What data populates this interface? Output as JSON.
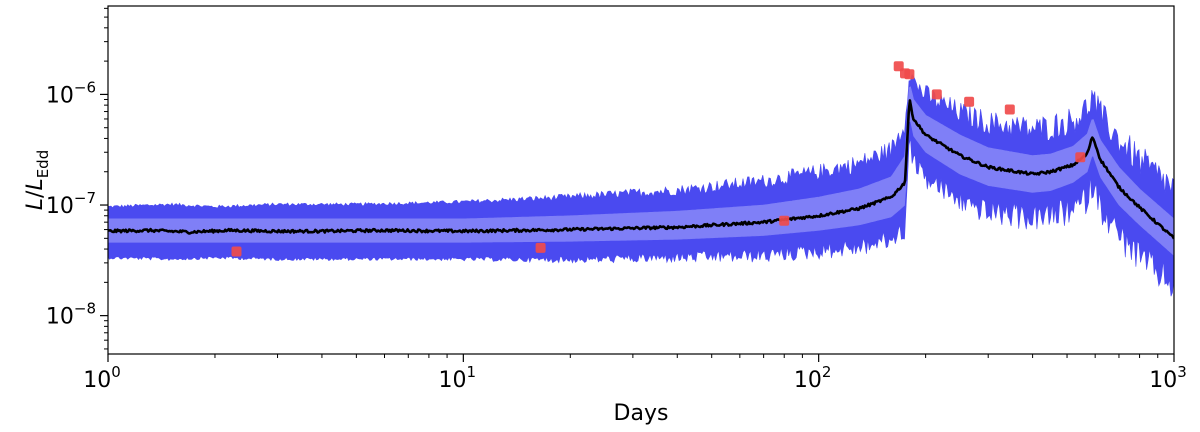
{
  "chart_data": {
    "type": "line",
    "title": "",
    "xlabel": "Days",
    "ylabel": {
      "main": "L",
      "slash": "/",
      "sub_main": "L",
      "sub": "Edd"
    },
    "xscale": "log",
    "yscale": "log",
    "xlim": [
      1,
      1000
    ],
    "ylim": [
      4.5e-09,
      6.3e-06
    ],
    "grid": false,
    "legend": "none",
    "x_ticks": [
      {
        "value": 1,
        "base": "10",
        "exp": "0"
      },
      {
        "value": 10,
        "base": "10",
        "exp": "1"
      },
      {
        "value": 100,
        "base": "10",
        "exp": "2"
      },
      {
        "value": 1000,
        "base": "10",
        "exp": "3"
      }
    ],
    "y_ticks": [
      {
        "value": 1e-08,
        "base": "10",
        "exp": "−8"
      },
      {
        "value": 1e-07,
        "base": "10",
        "exp": "−7"
      },
      {
        "value": 1e-06,
        "base": "10",
        "exp": "−6"
      }
    ],
    "colors": {
      "outer_band": "#4a4af0",
      "inner_band": "#7f7ff7",
      "median": "#000000",
      "observations": "#f04b4b"
    },
    "series": [
      {
        "kind": "median",
        "x": [
          1,
          1.3,
          1.7,
          2.2,
          3,
          4,
          6,
          10,
          20,
          40,
          70,
          100,
          130,
          160,
          175,
          180,
          185,
          200,
          250,
          300,
          400,
          450,
          520,
          570,
          590,
          620,
          700,
          800,
          1000
        ],
        "y": [
          5.8e-08,
          5.9e-08,
          5.7e-08,
          5.9e-08,
          5.8e-08,
          5.8e-08,
          5.9e-08,
          5.8e-08,
          6e-08,
          6.3e-08,
          7e-08,
          8e-08,
          9.3e-08,
          1.18e-07,
          1.6e-07,
          9e-07,
          6e-07,
          4.3e-07,
          2.8e-07,
          2.2e-07,
          1.9e-07,
          2e-07,
          2.3e-07,
          2.9e-07,
          4.2e-07,
          2.6e-07,
          1.45e-07,
          9.5e-08,
          5e-08
        ]
      },
      {
        "kind": "inner-band-upper",
        "x": [
          1,
          2,
          5,
          10,
          20,
          40,
          70,
          100,
          130,
          160,
          175,
          180,
          185,
          200,
          250,
          300,
          400,
          450,
          520,
          570,
          590,
          620,
          700,
          800,
          1000
        ],
        "y": [
          7.5e-08,
          7.5e-08,
          7.5e-08,
          7.5e-08,
          8e-08,
          8.8e-08,
          1e-07,
          1.18e-07,
          1.4e-07,
          1.8e-07,
          2.8e-07,
          1.3e-06,
          9e-07,
          6.5e-07,
          4.3e-07,
          3.3e-07,
          2.8e-07,
          2.9e-07,
          3.4e-07,
          4.4e-07,
          6.2e-07,
          3.9e-07,
          2.2e-07,
          1.4e-07,
          7.5e-08
        ]
      },
      {
        "kind": "inner-band-lower",
        "x": [
          1,
          2,
          5,
          10,
          20,
          40,
          70,
          100,
          130,
          160,
          175,
          180,
          185,
          200,
          250,
          300,
          400,
          450,
          520,
          570,
          590,
          620,
          700,
          800,
          1000
        ],
        "y": [
          4.6e-08,
          4.6e-08,
          4.6e-08,
          4.6e-08,
          4.7e-08,
          4.9e-08,
          5.3e-08,
          5.9e-08,
          6.6e-08,
          7.8e-08,
          1e-07,
          6.5e-07,
          4.2e-07,
          3e-07,
          1.9e-07,
          1.5e-07,
          1.3e-07,
          1.35e-07,
          1.6e-07,
          2e-07,
          2.9e-07,
          1.8e-07,
          1e-07,
          6.6e-08,
          3.5e-08
        ]
      },
      {
        "kind": "outer-band-upper",
        "x": [
          1,
          1.5,
          2,
          3,
          5,
          10,
          20,
          40,
          70,
          100,
          130,
          160,
          175,
          180,
          185,
          200,
          250,
          300,
          400,
          450,
          520,
          570,
          590,
          620,
          700,
          800,
          1000
        ],
        "y": [
          9.5e-08,
          1e-07,
          9.5e-08,
          1e-07,
          1e-07,
          1.05e-07,
          1.15e-07,
          1.3e-07,
          1.55e-07,
          1.85e-07,
          2.2e-07,
          2.9e-07,
          5e-07,
          1.6e-06,
          1.2e-06,
          9e-07,
          6.2e-07,
          5e-07,
          4.3e-07,
          4.5e-07,
          5.2e-07,
          6.6e-07,
          8.5e-07,
          5.8e-07,
          3.4e-07,
          2.2e-07,
          1.2e-07
        ]
      },
      {
        "kind": "outer-band-lower",
        "x": [
          1,
          1.5,
          2,
          3,
          5,
          10,
          20,
          40,
          70,
          100,
          130,
          160,
          175,
          180,
          185,
          200,
          250,
          300,
          400,
          450,
          520,
          570,
          590,
          620,
          700,
          800,
          1000
        ],
        "y": [
          3.4e-08,
          3.3e-08,
          3.4e-08,
          3.3e-08,
          3.3e-08,
          3.3e-08,
          3.3e-08,
          3.5e-08,
          3.7e-08,
          4.1e-08,
          4.5e-08,
          5.3e-08,
          6.5e-08,
          4.2e-07,
          2.7e-07,
          1.9e-07,
          1.2e-07,
          9.5e-08,
          8.5e-08,
          8.8e-08,
          1e-07,
          1.3e-07,
          1.8e-07,
          1.1e-07,
          6e-08,
          3.8e-08,
          2.2e-08
        ]
      },
      {
        "kind": "observations",
        "x": [
          2.3,
          16.5,
          80,
          168,
          175,
          180,
          215,
          265,
          345,
          545
        ],
        "y": [
          3.8e-08,
          4.1e-08,
          7.2e-08,
          1.8e-06,
          1.55e-06,
          1.52e-06,
          1e-06,
          8.6e-07,
          7.3e-07,
          2.7e-07
        ]
      }
    ]
  }
}
